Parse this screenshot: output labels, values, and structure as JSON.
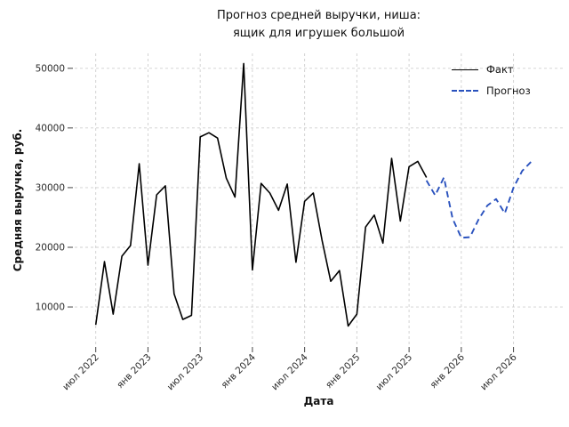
{
  "title": {
    "line1": "Прогноз средней выручки, ниша:",
    "line2": "ящик для игрушек большой"
  },
  "chart_data": {
    "type": "line",
    "title": "Прогноз средней выручки, ниша: ящик для игрушек большой",
    "xlabel": "Дата",
    "ylabel": "Средняя выручка, руб.",
    "grid": "dashed light-gray, both axes",
    "ylim": [
      3300,
      52500
    ],
    "y_ticks": [
      10000,
      20000,
      30000,
      40000,
      50000
    ],
    "x_start_month": "2022-07",
    "x_tick_labels": [
      "июл 2022",
      "янв 2023",
      "июл 2023",
      "янв 2024",
      "июл 2024",
      "янв 2025",
      "июл 2025",
      "янв 2026",
      "июл 2026"
    ],
    "x_tick_month_index": [
      0,
      6,
      12,
      18,
      24,
      30,
      36,
      42,
      48
    ],
    "xlim_month_index": [
      -2.42,
      53.66
    ],
    "legend": {
      "position": "upper right",
      "entries": [
        {
          "label": "Факт",
          "style": "solid",
          "color": "#000000"
        },
        {
          "label": "Прогноз",
          "style": "dashed",
          "color": "#2a52be"
        }
      ]
    },
    "series": [
      {
        "name": "Факт",
        "style": "solid",
        "color": "#000000",
        "start_month_index": 0,
        "months": [
          "2022-07",
          "2022-08",
          "2022-09",
          "2022-10",
          "2022-11",
          "2022-12",
          "2023-01",
          "2023-02",
          "2023-03",
          "2023-04",
          "2023-05",
          "2023-06",
          "2023-07",
          "2023-08",
          "2023-09",
          "2023-10",
          "2023-11",
          "2023-12",
          "2024-01",
          "2024-02",
          "2024-03",
          "2024-04",
          "2024-05",
          "2024-06",
          "2024-07",
          "2024-08",
          "2024-09",
          "2024-10",
          "2024-11",
          "2024-12",
          "2025-01",
          "2025-02",
          "2025-03",
          "2025-04",
          "2025-05",
          "2025-06",
          "2025-07",
          "2025-08",
          "2025-09"
        ],
        "values": [
          7000,
          17600,
          8800,
          18500,
          20300,
          34000,
          17000,
          28800,
          30300,
          12200,
          7900,
          8600,
          38500,
          39200,
          38300,
          31600,
          28400,
          50800,
          16200,
          30700,
          29100,
          26200,
          30600,
          17500,
          27700,
          29100,
          21200,
          14300,
          16100,
          6800,
          8800,
          23400,
          25400,
          20700,
          34900,
          24400,
          33500,
          34400,
          31700
        ]
      },
      {
        "name": "Прогноз",
        "style": "dashed",
        "color": "#2a52be",
        "start_month_index": 38,
        "months": [
          "2025-09",
          "2025-10",
          "2025-11",
          "2025-12",
          "2026-01",
          "2026-02",
          "2026-03",
          "2026-04",
          "2026-05",
          "2026-06",
          "2026-07",
          "2026-08",
          "2026-09"
        ],
        "values": [
          31200,
          28700,
          31700,
          24800,
          21600,
          21700,
          24700,
          27000,
          28100,
          25700,
          30000,
          32800,
          34300
        ]
      }
    ]
  }
}
